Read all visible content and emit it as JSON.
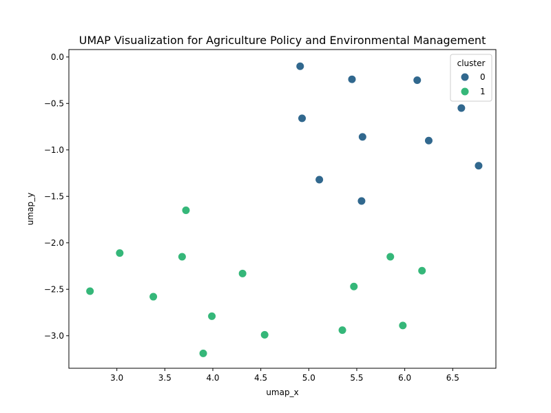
{
  "chart_data": {
    "type": "scatter",
    "title": "UMAP Visualization for Agriculture Policy and Environmental Management",
    "xlabel": "umap_x",
    "ylabel": "umap_y",
    "xlim": [
      2.5,
      6.95
    ],
    "ylim": [
      -3.35,
      0.08
    ],
    "xticks": [
      3.0,
      3.5,
      4.0,
      4.5,
      5.0,
      5.5,
      6.0,
      6.5
    ],
    "xtick_labels": [
      "3.0",
      "3.5",
      "4.0",
      "4.5",
      "5.0",
      "5.5",
      "6.0",
      "6.5"
    ],
    "yticks": [
      0.0,
      -0.5,
      -1.0,
      -1.5,
      -2.0,
      -2.5,
      -3.0
    ],
    "ytick_labels": [
      "0.0",
      "−0.5",
      "−1.0",
      "−1.5",
      "−2.0",
      "−2.5",
      "−3.0"
    ],
    "grid": false,
    "legend": {
      "title": "cluster",
      "placement": "top-right"
    },
    "series": [
      {
        "name": "0",
        "color": "#31688e",
        "points": [
          [
            4.91,
            -0.1
          ],
          [
            5.45,
            -0.24
          ],
          [
            6.13,
            -0.25
          ],
          [
            6.59,
            -0.55
          ],
          [
            4.93,
            -0.66
          ],
          [
            5.56,
            -0.86
          ],
          [
            6.25,
            -0.9
          ],
          [
            6.77,
            -1.17
          ],
          [
            5.11,
            -1.32
          ],
          [
            5.55,
            -1.55
          ]
        ]
      },
      {
        "name": "1",
        "color": "#35b779",
        "points": [
          [
            3.72,
            -1.65
          ],
          [
            3.03,
            -2.11
          ],
          [
            3.68,
            -2.15
          ],
          [
            5.85,
            -2.15
          ],
          [
            6.18,
            -2.3
          ],
          [
            4.31,
            -2.33
          ],
          [
            5.47,
            -2.47
          ],
          [
            2.72,
            -2.52
          ],
          [
            3.38,
            -2.58
          ],
          [
            3.99,
            -2.79
          ],
          [
            5.98,
            -2.89
          ],
          [
            5.35,
            -2.94
          ],
          [
            4.54,
            -2.99
          ],
          [
            3.9,
            -3.19
          ]
        ]
      }
    ]
  }
}
